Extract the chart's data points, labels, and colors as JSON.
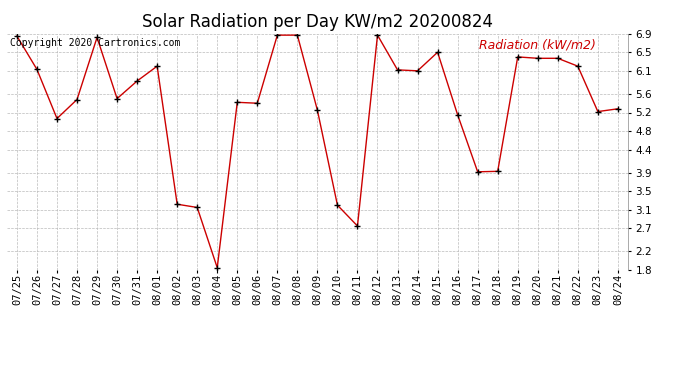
{
  "title": "Solar Radiation per Day KW/m2 20200824",
  "copyright": "Copyright 2020 Cartronics.com",
  "legend_label": "Radiation (kW/m2)",
  "dates": [
    "07/25",
    "07/26",
    "07/27",
    "07/28",
    "07/29",
    "07/30",
    "07/31",
    "08/01",
    "08/02",
    "08/03",
    "08/04",
    "08/05",
    "08/06",
    "08/07",
    "08/08",
    "08/09",
    "08/10",
    "08/11",
    "08/12",
    "08/13",
    "08/14",
    "08/15",
    "08/16",
    "08/17",
    "08/18",
    "08/19",
    "08/20",
    "08/21",
    "08/22",
    "08/23",
    "08/24"
  ],
  "values": [
    6.85,
    6.13,
    5.07,
    5.48,
    6.82,
    5.5,
    5.88,
    6.2,
    3.22,
    3.15,
    1.85,
    5.42,
    5.4,
    6.87,
    6.87,
    5.25,
    3.2,
    2.75,
    6.87,
    6.12,
    6.1,
    6.5,
    5.15,
    3.92,
    3.93,
    6.4,
    6.37,
    6.37,
    6.2,
    5.22,
    5.28
  ],
  "line_color": "#cc0000",
  "marker_color": "#000000",
  "bg_color": "#ffffff",
  "grid_color": "#bbbbbb",
  "ylim": [
    1.8,
    6.9
  ],
  "yticks": [
    1.8,
    2.2,
    2.7,
    3.1,
    3.5,
    3.9,
    4.4,
    4.8,
    5.2,
    5.6,
    6.1,
    6.5,
    6.9
  ],
  "title_fontsize": 12,
  "copyright_fontsize": 7,
  "legend_fontsize": 9,
  "tick_fontsize": 7.5
}
